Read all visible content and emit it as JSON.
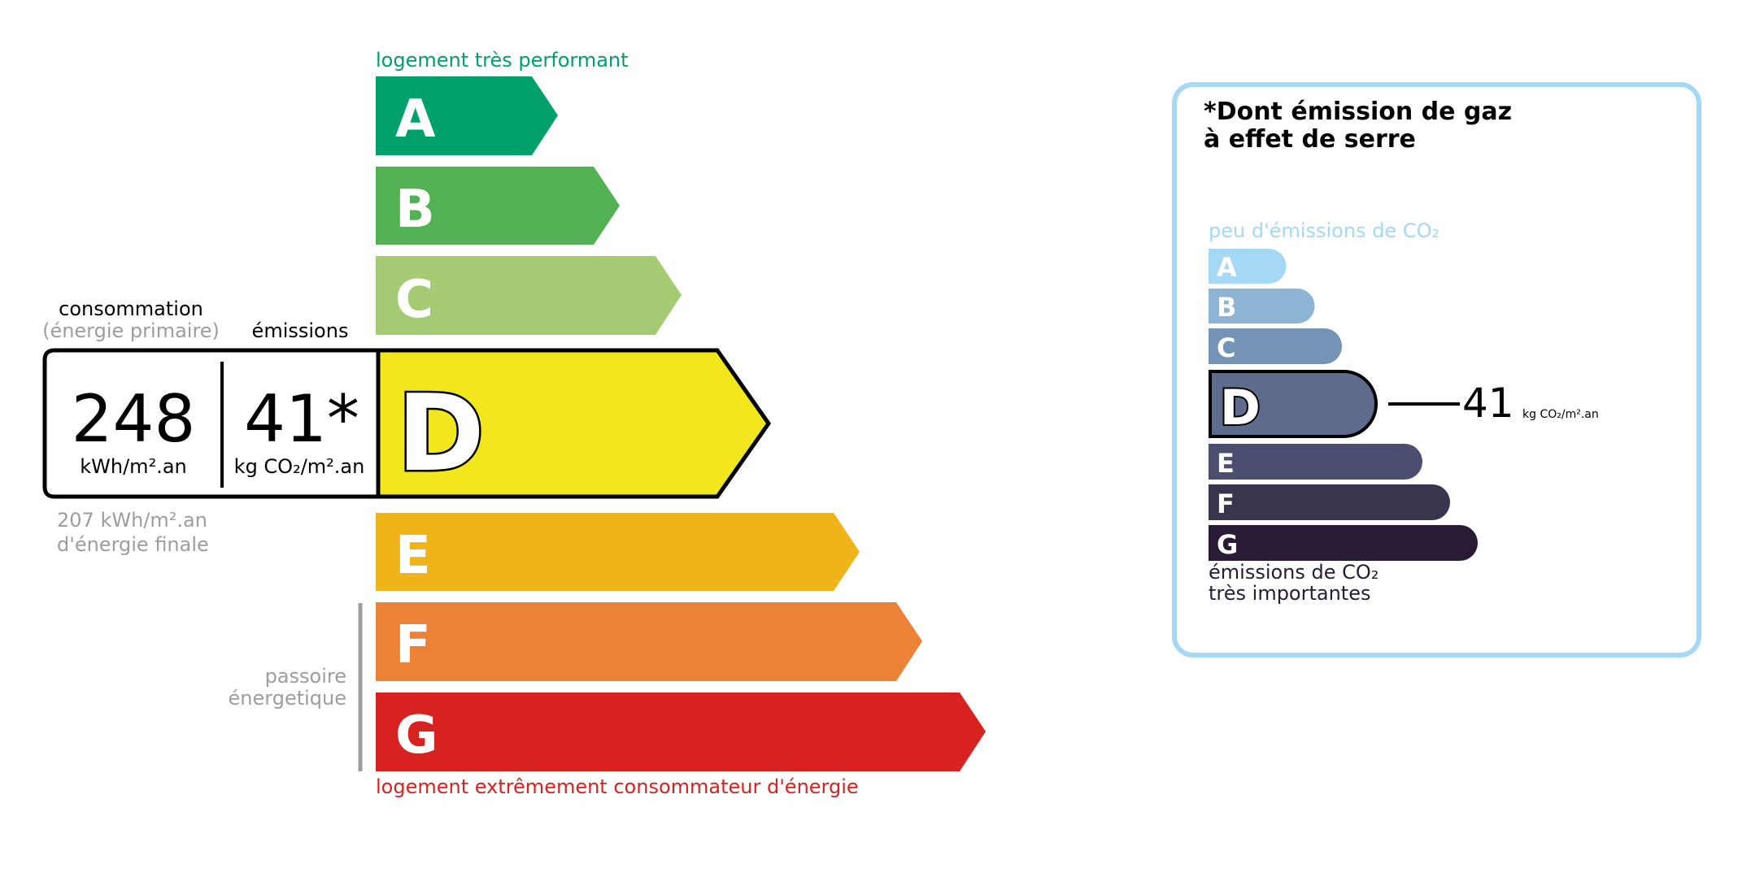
{
  "energy": {
    "top_label": "logement très performant",
    "bottom_label": "logement extrêmement consommateur d'énergie",
    "top_label_color": "#00a06a",
    "bottom_label_color": "#d7221f",
    "classes": [
      {
        "letter": "A",
        "color": "#00a06a"
      },
      {
        "letter": "B",
        "color": "#52b153"
      },
      {
        "letter": "C",
        "color": "#a5cc74"
      },
      {
        "letter": "D",
        "color": "#f1e71c"
      },
      {
        "letter": "E",
        "color": "#efb41a"
      },
      {
        "letter": "F",
        "color": "#eb8235"
      },
      {
        "letter": "G",
        "color": "#d7221f"
      }
    ],
    "current_class": "D",
    "consumption_label": "consommation",
    "consumption_sublabel": "(énergie primaire)",
    "emissions_label": "émissions",
    "consumption_value": "248",
    "consumption_unit": "kWh/m².an",
    "emissions_value": "41*",
    "emissions_unit": "kg CO₂/m².an",
    "final_energy_line1": "207 kWh/m².an",
    "final_energy_line2": "d'énergie finale",
    "passoire_line1": "passoire",
    "passoire_line2": "énergetique"
  },
  "ges": {
    "title_line1": "*Dont émission de gaz",
    "title_line2": "à effet de serre",
    "top_label": "peu d'émissions de CO₂",
    "bottom_label_line1": "émissions de CO₂",
    "bottom_label_line2": "très importantes",
    "border_color": "#a4d8f5",
    "classes": [
      {
        "letter": "A",
        "color": "#a4d8f5"
      },
      {
        "letter": "B",
        "color": "#8cb4d5"
      },
      {
        "letter": "C",
        "color": "#7593b5"
      },
      {
        "letter": "D",
        "color": "#5e6b8c"
      },
      {
        "letter": "E",
        "color": "#4b4e6e"
      },
      {
        "letter": "F",
        "color": "#38354f"
      },
      {
        "letter": "G",
        "color": "#281b35"
      }
    ],
    "current_class": "D",
    "value": "41",
    "unit": "kg CO₂/m².an"
  }
}
